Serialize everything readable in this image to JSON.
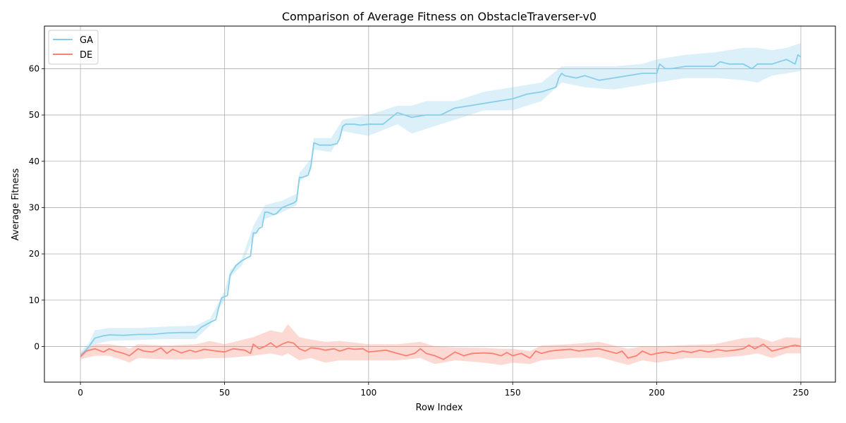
{
  "chart_data": {
    "type": "line",
    "title": "Comparison of Average Fitness on ObstacleTraverser-v0",
    "xlabel": "Row Index",
    "ylabel": "Average Fitness",
    "xlim": [
      -12.5,
      262
    ],
    "ylim": [
      -7.7,
      69.2
    ],
    "xticks": [
      0,
      50,
      100,
      150,
      200,
      250
    ],
    "yticks": [
      0,
      10,
      20,
      30,
      40,
      50,
      60
    ],
    "grid": true,
    "legend_position": "top-left",
    "series": [
      {
        "name": "GA",
        "color": "#87ceeb",
        "points": [
          [
            0,
            -2
          ],
          [
            3,
            0
          ],
          [
            5,
            1.8
          ],
          [
            8,
            2.3
          ],
          [
            10,
            2.5
          ],
          [
            15,
            2.4
          ],
          [
            20,
            2.6
          ],
          [
            25,
            2.6
          ],
          [
            30,
            2.9
          ],
          [
            35,
            3.0
          ],
          [
            40,
            3.0
          ],
          [
            42,
            4.2
          ],
          [
            45,
            5.2
          ],
          [
            47,
            5.8
          ],
          [
            48,
            8.5
          ],
          [
            49,
            10.5
          ],
          [
            51,
            11
          ],
          [
            52,
            15.5
          ],
          [
            54,
            17.5
          ],
          [
            56,
            18.5
          ],
          [
            58,
            19.2
          ],
          [
            59,
            19.5
          ],
          [
            60,
            24.5
          ],
          [
            61,
            24.5
          ],
          [
            62,
            25.5
          ],
          [
            63,
            25.8
          ],
          [
            64,
            29
          ],
          [
            65,
            29
          ],
          [
            67,
            28.5
          ],
          [
            68,
            28.7
          ],
          [
            70,
            30
          ],
          [
            72,
            30.5
          ],
          [
            74,
            31
          ],
          [
            75,
            31.5
          ],
          [
            76,
            36.5
          ],
          [
            77,
            36.5
          ],
          [
            79,
            37
          ],
          [
            80,
            39
          ],
          [
            81,
            44
          ],
          [
            83,
            43.5
          ],
          [
            85,
            43.5
          ],
          [
            87,
            43.5
          ],
          [
            89,
            43.8
          ],
          [
            90,
            45
          ],
          [
            91,
            47.5
          ],
          [
            92,
            48
          ],
          [
            95,
            48
          ],
          [
            97,
            47.8
          ],
          [
            100,
            48
          ],
          [
            105,
            48
          ],
          [
            110,
            50.5
          ],
          [
            115,
            49.5
          ],
          [
            120,
            50
          ],
          [
            125,
            50
          ],
          [
            130,
            51.5
          ],
          [
            135,
            52
          ],
          [
            140,
            52.5
          ],
          [
            145,
            53
          ],
          [
            150,
            53.5
          ],
          [
            155,
            54.5
          ],
          [
            160,
            55
          ],
          [
            165,
            56
          ],
          [
            166,
            58
          ],
          [
            167,
            59
          ],
          [
            168,
            58.5
          ],
          [
            172,
            58
          ],
          [
            175,
            58.5
          ],
          [
            180,
            57.5
          ],
          [
            185,
            58
          ],
          [
            190,
            58.5
          ],
          [
            195,
            59
          ],
          [
            200,
            59
          ],
          [
            201,
            61
          ],
          [
            203,
            60
          ],
          [
            205,
            60
          ],
          [
            210,
            60.5
          ],
          [
            215,
            60.5
          ],
          [
            220,
            60.5
          ],
          [
            222,
            61.5
          ],
          [
            225,
            61
          ],
          [
            230,
            61
          ],
          [
            233,
            60
          ],
          [
            235,
            61
          ],
          [
            240,
            61
          ],
          [
            245,
            62
          ],
          [
            248,
            61
          ],
          [
            249,
            63
          ],
          [
            250,
            62.5
          ]
        ],
        "band": [
          [
            0,
            -2.6,
            -1.2
          ],
          [
            3,
            -0.5,
            0.8
          ],
          [
            5,
            0.5,
            3.5
          ],
          [
            10,
            1.2,
            4
          ],
          [
            20,
            1.4,
            4.0
          ],
          [
            30,
            1.6,
            4.3
          ],
          [
            40,
            1.6,
            4.5
          ],
          [
            45,
            4.5,
            6
          ],
          [
            48,
            8,
            9.5
          ],
          [
            50,
            10,
            12
          ],
          [
            52,
            15,
            16.5
          ],
          [
            56,
            17.5,
            19
          ],
          [
            60,
            23.5,
            26
          ],
          [
            64,
            27.5,
            30.5
          ],
          [
            70,
            29,
            31.5
          ],
          [
            75,
            30.5,
            33
          ],
          [
            76,
            35.5,
            37.5
          ],
          [
            80,
            38,
            40.5
          ],
          [
            81,
            42.5,
            45
          ],
          [
            87,
            42,
            45
          ],
          [
            91,
            46.5,
            49
          ],
          [
            100,
            45.5,
            50
          ],
          [
            110,
            48,
            52
          ],
          [
            115,
            46,
            52
          ],
          [
            120,
            47,
            53
          ],
          [
            130,
            49,
            53
          ],
          [
            140,
            51,
            55
          ],
          [
            150,
            51,
            56
          ],
          [
            160,
            53,
            57
          ],
          [
            167,
            57,
            60.5
          ],
          [
            175,
            56,
            60.5
          ],
          [
            185,
            55.5,
            60.5
          ],
          [
            195,
            56.5,
            61
          ],
          [
            200,
            57,
            62
          ],
          [
            210,
            58,
            63
          ],
          [
            220,
            58,
            63.5
          ],
          [
            230,
            57.5,
            64.5
          ],
          [
            235,
            57,
            64.5
          ],
          [
            240,
            58.5,
            64
          ],
          [
            245,
            59,
            64.5
          ],
          [
            250,
            59.5,
            65.5
          ]
        ]
      },
      {
        "name": "DE",
        "color": "#fa8072",
        "points": [
          [
            0,
            -2.2
          ],
          [
            2,
            -1
          ],
          [
            5,
            -0.5
          ],
          [
            8,
            -1.2
          ],
          [
            10,
            -0.5
          ],
          [
            12,
            -1
          ],
          [
            15,
            -1.5
          ],
          [
            17,
            -2
          ],
          [
            19,
            -1
          ],
          [
            20,
            -0.5
          ],
          [
            22,
            -1
          ],
          [
            25,
            -1.2
          ],
          [
            28,
            -0.3
          ],
          [
            30,
            -1.5
          ],
          [
            32,
            -0.6
          ],
          [
            35,
            -1.4
          ],
          [
            38,
            -0.8
          ],
          [
            40,
            -1.2
          ],
          [
            43,
            -0.6
          ],
          [
            46,
            -0.9
          ],
          [
            50,
            -1.2
          ],
          [
            53,
            -0.5
          ],
          [
            57,
            -0.8
          ],
          [
            59,
            -1.5
          ],
          [
            60,
            0.5
          ],
          [
            62,
            -0.5
          ],
          [
            64,
            0
          ],
          [
            66,
            0.8
          ],
          [
            68,
            -0.2
          ],
          [
            70,
            0.5
          ],
          [
            72,
            1
          ],
          [
            74,
            0.7
          ],
          [
            76,
            -0.5
          ],
          [
            78,
            -1
          ],
          [
            80,
            -0.3
          ],
          [
            83,
            -0.5
          ],
          [
            85,
            -0.8
          ],
          [
            88,
            -0.5
          ],
          [
            90,
            -1
          ],
          [
            93,
            -0.4
          ],
          [
            95,
            -0.6
          ],
          [
            98,
            -0.5
          ],
          [
            100,
            -1.2
          ],
          [
            103,
            -1
          ],
          [
            106,
            -0.8
          ],
          [
            110,
            -1.5
          ],
          [
            113,
            -2
          ],
          [
            116,
            -1.5
          ],
          [
            118,
            -0.5
          ],
          [
            120,
            -1.5
          ],
          [
            123,
            -2
          ],
          [
            126,
            -2.8
          ],
          [
            128,
            -2
          ],
          [
            130,
            -1.2
          ],
          [
            133,
            -2
          ],
          [
            136,
            -1.5
          ],
          [
            140,
            -1.4
          ],
          [
            143,
            -1.5
          ],
          [
            146,
            -2
          ],
          [
            148,
            -1.3
          ],
          [
            150,
            -2
          ],
          [
            153,
            -1.5
          ],
          [
            156,
            -2.5
          ],
          [
            158,
            -1
          ],
          [
            160,
            -1.5
          ],
          [
            163,
            -1
          ],
          [
            166,
            -0.8
          ],
          [
            170,
            -0.6
          ],
          [
            173,
            -1
          ],
          [
            176,
            -0.7
          ],
          [
            180,
            -0.5
          ],
          [
            183,
            -1
          ],
          [
            186,
            -1.5
          ],
          [
            188,
            -1
          ],
          [
            190,
            -2.5
          ],
          [
            193,
            -2
          ],
          [
            195,
            -1
          ],
          [
            198,
            -1.8
          ],
          [
            200,
            -1.5
          ],
          [
            203,
            -1.2
          ],
          [
            206,
            -1.5
          ],
          [
            209,
            -1
          ],
          [
            212,
            -1.3
          ],
          [
            215,
            -0.8
          ],
          [
            218,
            -1.2
          ],
          [
            221,
            -0.7
          ],
          [
            224,
            -1
          ],
          [
            227,
            -0.8
          ],
          [
            230,
            -0.5
          ],
          [
            232,
            0.3
          ],
          [
            234,
            -0.5
          ],
          [
            237,
            0.5
          ],
          [
            240,
            -1
          ],
          [
            243,
            -0.5
          ],
          [
            246,
            0
          ],
          [
            248,
            0.3
          ],
          [
            250,
            0
          ]
        ],
        "band": [
          [
            0,
            -2.8,
            -1.5
          ],
          [
            5,
            -2,
            0.5
          ],
          [
            10,
            -2,
            0.5
          ],
          [
            15,
            -3,
            0
          ],
          [
            17,
            -3.5,
            -0.5
          ],
          [
            20,
            -2.5,
            0.5
          ],
          [
            30,
            -2.8,
            0.2
          ],
          [
            40,
            -2.8,
            0.5
          ],
          [
            45,
            -2.5,
            1.2
          ],
          [
            50,
            -2.5,
            0.5
          ],
          [
            60,
            -2,
            2
          ],
          [
            66,
            -1.5,
            3.5
          ],
          [
            70,
            -2,
            3
          ],
          [
            72,
            -1.5,
            4.8
          ],
          [
            76,
            -3,
            2
          ],
          [
            80,
            -2.5,
            1.5
          ],
          [
            85,
            -3.5,
            1
          ],
          [
            90,
            -3,
            1.2
          ],
          [
            100,
            -3,
            0.5
          ],
          [
            110,
            -3,
            0.5
          ],
          [
            118,
            -2.5,
            1
          ],
          [
            123,
            -3.8,
            0
          ],
          [
            130,
            -3,
            -0.2
          ],
          [
            140,
            -3.5,
            -0.3
          ],
          [
            146,
            -4,
            -0.5
          ],
          [
            150,
            -3.5,
            -0.5
          ],
          [
            156,
            -3.8,
            -1
          ],
          [
            160,
            -3,
            0.2
          ],
          [
            170,
            -2.5,
            0.5
          ],
          [
            180,
            -2.3,
            1
          ],
          [
            190,
            -4,
            -0.5
          ],
          [
            195,
            -3,
            0
          ],
          [
            200,
            -3.5,
            0
          ],
          [
            210,
            -2.5,
            0.3
          ],
          [
            220,
            -2.5,
            0.5
          ],
          [
            230,
            -2,
            1.8
          ],
          [
            235,
            -1.5,
            2
          ],
          [
            240,
            -2.5,
            1
          ],
          [
            245,
            -1.5,
            2
          ],
          [
            250,
            -1.5,
            1.8
          ]
        ]
      }
    ]
  }
}
